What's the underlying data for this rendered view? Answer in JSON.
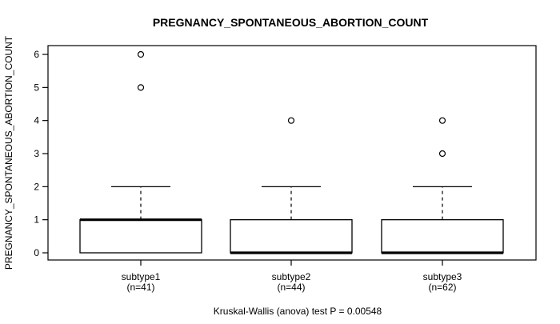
{
  "colors": {
    "background": "#ffffff",
    "line": "#000000",
    "text": "#000000",
    "box_fill": "#ffffff"
  },
  "chart_data": {
    "type": "boxplot",
    "title": "PREGNANCY_SPONTANEOUS_ABORTION_COUNT",
    "ylabel": "PREGNANCY_SPONTANEOUS_ABORTION_COUNT",
    "xlabel": "",
    "caption": "Kruskal-Wallis (anova) test P = 0.00548",
    "ylim": [
      0,
      6
    ],
    "yticks": [
      0,
      1,
      2,
      3,
      4,
      5,
      6
    ],
    "grid": false,
    "legend": null,
    "groups": [
      {
        "label": "subtype1",
        "sublabel": "(n=41)",
        "n": 41,
        "q1": 0,
        "median": 1,
        "q3": 1,
        "whisker_low": 0,
        "whisker_high": 2,
        "outliers": [
          5,
          6
        ]
      },
      {
        "label": "subtype2",
        "sublabel": "(n=44)",
        "n": 44,
        "q1": 0,
        "median": 0,
        "q3": 1,
        "whisker_low": 0,
        "whisker_high": 2,
        "outliers": [
          4
        ]
      },
      {
        "label": "subtype3",
        "sublabel": "(n=62)",
        "n": 62,
        "q1": 0,
        "median": 0,
        "q3": 1,
        "whisker_low": 0,
        "whisker_high": 2,
        "outliers": [
          4,
          3
        ]
      }
    ]
  }
}
